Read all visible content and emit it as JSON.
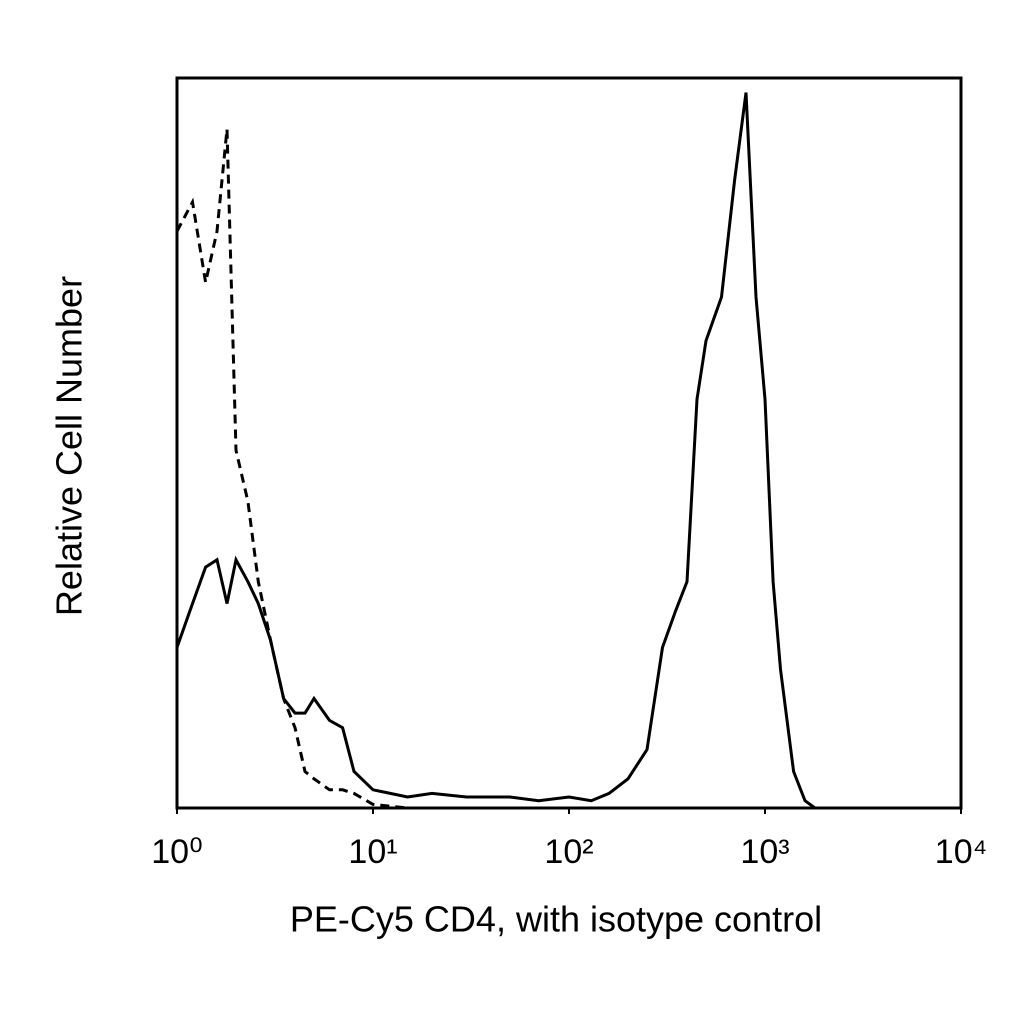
{
  "chart_data": {
    "type": "line",
    "x_label": "PE-Cy5 CD4, with isotype control",
    "y_label": "Relative Cell Number",
    "x": [
      1,
      1.2,
      1.4,
      1.6,
      1.8,
      2,
      2.3,
      2.6,
      3,
      3.5,
      4,
      4.5,
      5,
      6,
      7,
      8,
      10,
      15,
      20,
      30,
      50,
      70,
      100,
      130,
      160,
      200,
      250,
      300,
      350,
      400,
      450,
      500,
      600,
      700,
      800,
      900,
      1000,
      1100,
      1200,
      1400,
      1600,
      1800,
      2000
    ],
    "series": [
      {
        "color": "#000000",
        "line_style": "solid",
        "values": [
          22,
          28,
          33,
          34,
          28,
          34,
          31,
          28,
          23,
          15,
          13,
          13,
          15,
          12,
          11,
          5,
          2.5,
          1.5,
          2,
          1.5,
          1.5,
          1,
          1.5,
          1,
          2,
          4,
          8,
          22,
          27,
          31,
          56,
          64,
          70,
          86,
          98,
          70,
          56,
          31,
          19,
          5,
          1,
          0,
          0
        ]
      },
      {
        "color": "#000000",
        "line_style": "dashed",
        "values": [
          79,
          83,
          72,
          79,
          93,
          49,
          42,
          31,
          23,
          15,
          11,
          5,
          4,
          2.5,
          2.5,
          2,
          0.5,
          0,
          0,
          0,
          0,
          0,
          0,
          0,
          0,
          0,
          0,
          0,
          0,
          0,
          0,
          0,
          0,
          0,
          0,
          0,
          0,
          0,
          0,
          0,
          0,
          0,
          0
        ]
      }
    ],
    "log_x": true,
    "xlim": [
      1,
      10000
    ],
    "xticks": [
      {
        "value": 1,
        "label": "10⁰"
      },
      {
        "value": 10,
        "label": "10¹"
      },
      {
        "value": 100,
        "label": "10²"
      },
      {
        "value": 1000,
        "label": "10³"
      },
      {
        "value": 10000,
        "label": "10⁴"
      }
    ],
    "ylim": [
      0,
      100
    ]
  }
}
